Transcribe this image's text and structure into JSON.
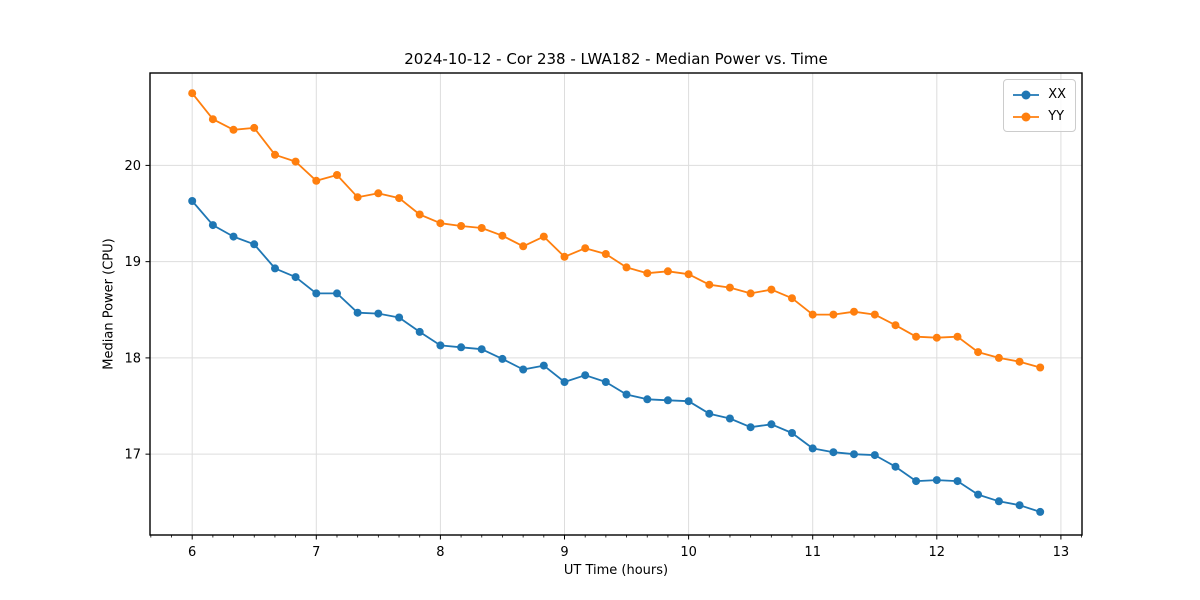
{
  "chart_data": {
    "type": "line",
    "title": "2024-10-12 - Cor 238 - LWA182 - Median Power vs. Time",
    "xlabel": "UT Time (hours)",
    "ylabel": "Median Power (CPU)",
    "x": [
      6.0,
      6.167,
      6.333,
      6.5,
      6.667,
      6.833,
      7.0,
      7.167,
      7.333,
      7.5,
      7.667,
      7.833,
      8.0,
      8.167,
      8.333,
      8.5,
      8.667,
      8.833,
      9.0,
      9.167,
      9.333,
      9.5,
      9.667,
      9.833,
      10.0,
      10.167,
      10.333,
      10.5,
      10.667,
      10.833,
      11.0,
      11.167,
      11.333,
      11.5,
      11.667,
      11.833,
      12.0,
      12.167,
      12.333,
      12.5,
      12.667,
      12.833
    ],
    "series": [
      {
        "name": "XX",
        "color": "#1f77b4",
        "values": [
          19.63,
          19.38,
          19.26,
          19.18,
          18.93,
          18.84,
          18.67,
          18.67,
          18.47,
          18.46,
          18.42,
          18.27,
          18.13,
          18.11,
          18.09,
          17.99,
          17.88,
          17.92,
          17.75,
          17.82,
          17.75,
          17.62,
          17.57,
          17.56,
          17.55,
          17.42,
          17.37,
          17.28,
          17.31,
          17.22,
          17.06,
          17.02,
          17.0,
          16.99,
          16.87,
          16.72,
          16.73,
          16.72,
          16.58,
          16.51,
          16.47,
          16.4
        ]
      },
      {
        "name": "YY",
        "color": "#ff7f0e",
        "values": [
          20.75,
          20.48,
          20.37,
          20.39,
          20.11,
          20.04,
          19.84,
          19.9,
          19.67,
          19.71,
          19.66,
          19.49,
          19.4,
          19.37,
          19.35,
          19.27,
          19.16,
          19.26,
          19.05,
          19.14,
          19.08,
          18.94,
          18.88,
          18.9,
          18.87,
          18.76,
          18.73,
          18.67,
          18.71,
          18.62,
          18.45,
          18.45,
          18.48,
          18.45,
          18.34,
          18.22,
          18.21,
          18.22,
          18.06,
          18.0,
          17.96,
          17.9
        ]
      }
    ],
    "xlim": [
      5.66,
      13.17
    ],
    "ylim": [
      16.16,
      20.96
    ],
    "xticks": [
      6,
      7,
      8,
      9,
      10,
      11,
      12,
      13
    ],
    "yticks": [
      17,
      18,
      19,
      20
    ],
    "x_minor_per_major": 6,
    "grid": true,
    "grid_color": "#dddddd",
    "legend_position": "upper right",
    "marker": "circle",
    "background": "#ffffff"
  }
}
